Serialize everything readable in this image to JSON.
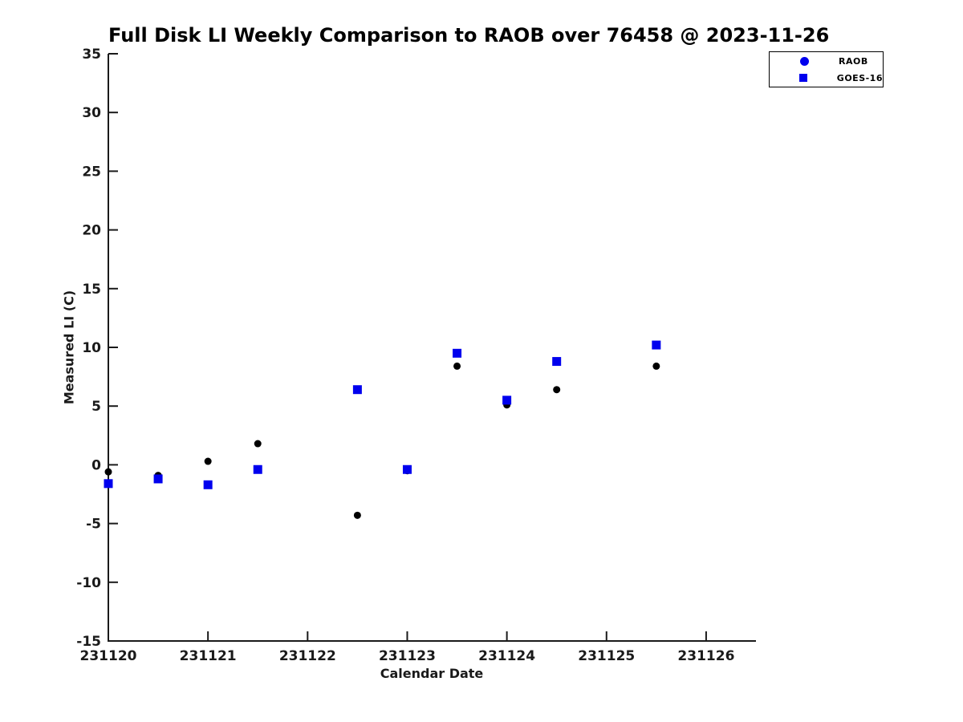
{
  "chart_data": {
    "type": "scatter",
    "title": "Full Disk LI Weekly Comparison to RAOB over 76458 @ 2023-11-26",
    "xlabel": "Calendar Date",
    "ylabel": "Measured LI (C)",
    "xlim": [
      231120,
      231126.5
    ],
    "ylim": [
      -15,
      35
    ],
    "x_ticks": [
      231120,
      231121,
      231122,
      231123,
      231124,
      231125,
      231126
    ],
    "y_ticks": [
      -15,
      -10,
      -5,
      0,
      5,
      10,
      15,
      20,
      25,
      30,
      35
    ],
    "grid": false,
    "legend_position": "top-right",
    "background_color": "#ffffff",
    "axis_color": "#1a1a1a",
    "series": [
      {
        "name": "RAOB",
        "marker": "circle",
        "color": "#000000",
        "legend_color": "#0000ee",
        "points": [
          [
            231120.0,
            -0.6
          ],
          [
            231120.5,
            -0.9
          ],
          [
            231121.0,
            0.3
          ],
          [
            231121.5,
            1.8
          ],
          [
            231122.5,
            -4.3
          ],
          [
            231123.0,
            -0.5
          ],
          [
            231123.5,
            8.4
          ],
          [
            231124.0,
            5.1
          ],
          [
            231124.5,
            6.4
          ],
          [
            231125.5,
            8.4
          ]
        ]
      },
      {
        "name": "GOES-16",
        "marker": "square",
        "color": "#0000ee",
        "legend_color": "#0000ee",
        "points": [
          [
            231120.0,
            -1.6
          ],
          [
            231120.5,
            -1.2
          ],
          [
            231121.0,
            -1.7
          ],
          [
            231121.5,
            -0.4
          ],
          [
            231122.5,
            6.4
          ],
          [
            231123.0,
            -0.4
          ],
          [
            231123.5,
            9.5
          ],
          [
            231124.0,
            5.5
          ],
          [
            231124.5,
            8.8
          ],
          [
            231125.5,
            10.2
          ]
        ]
      }
    ]
  }
}
